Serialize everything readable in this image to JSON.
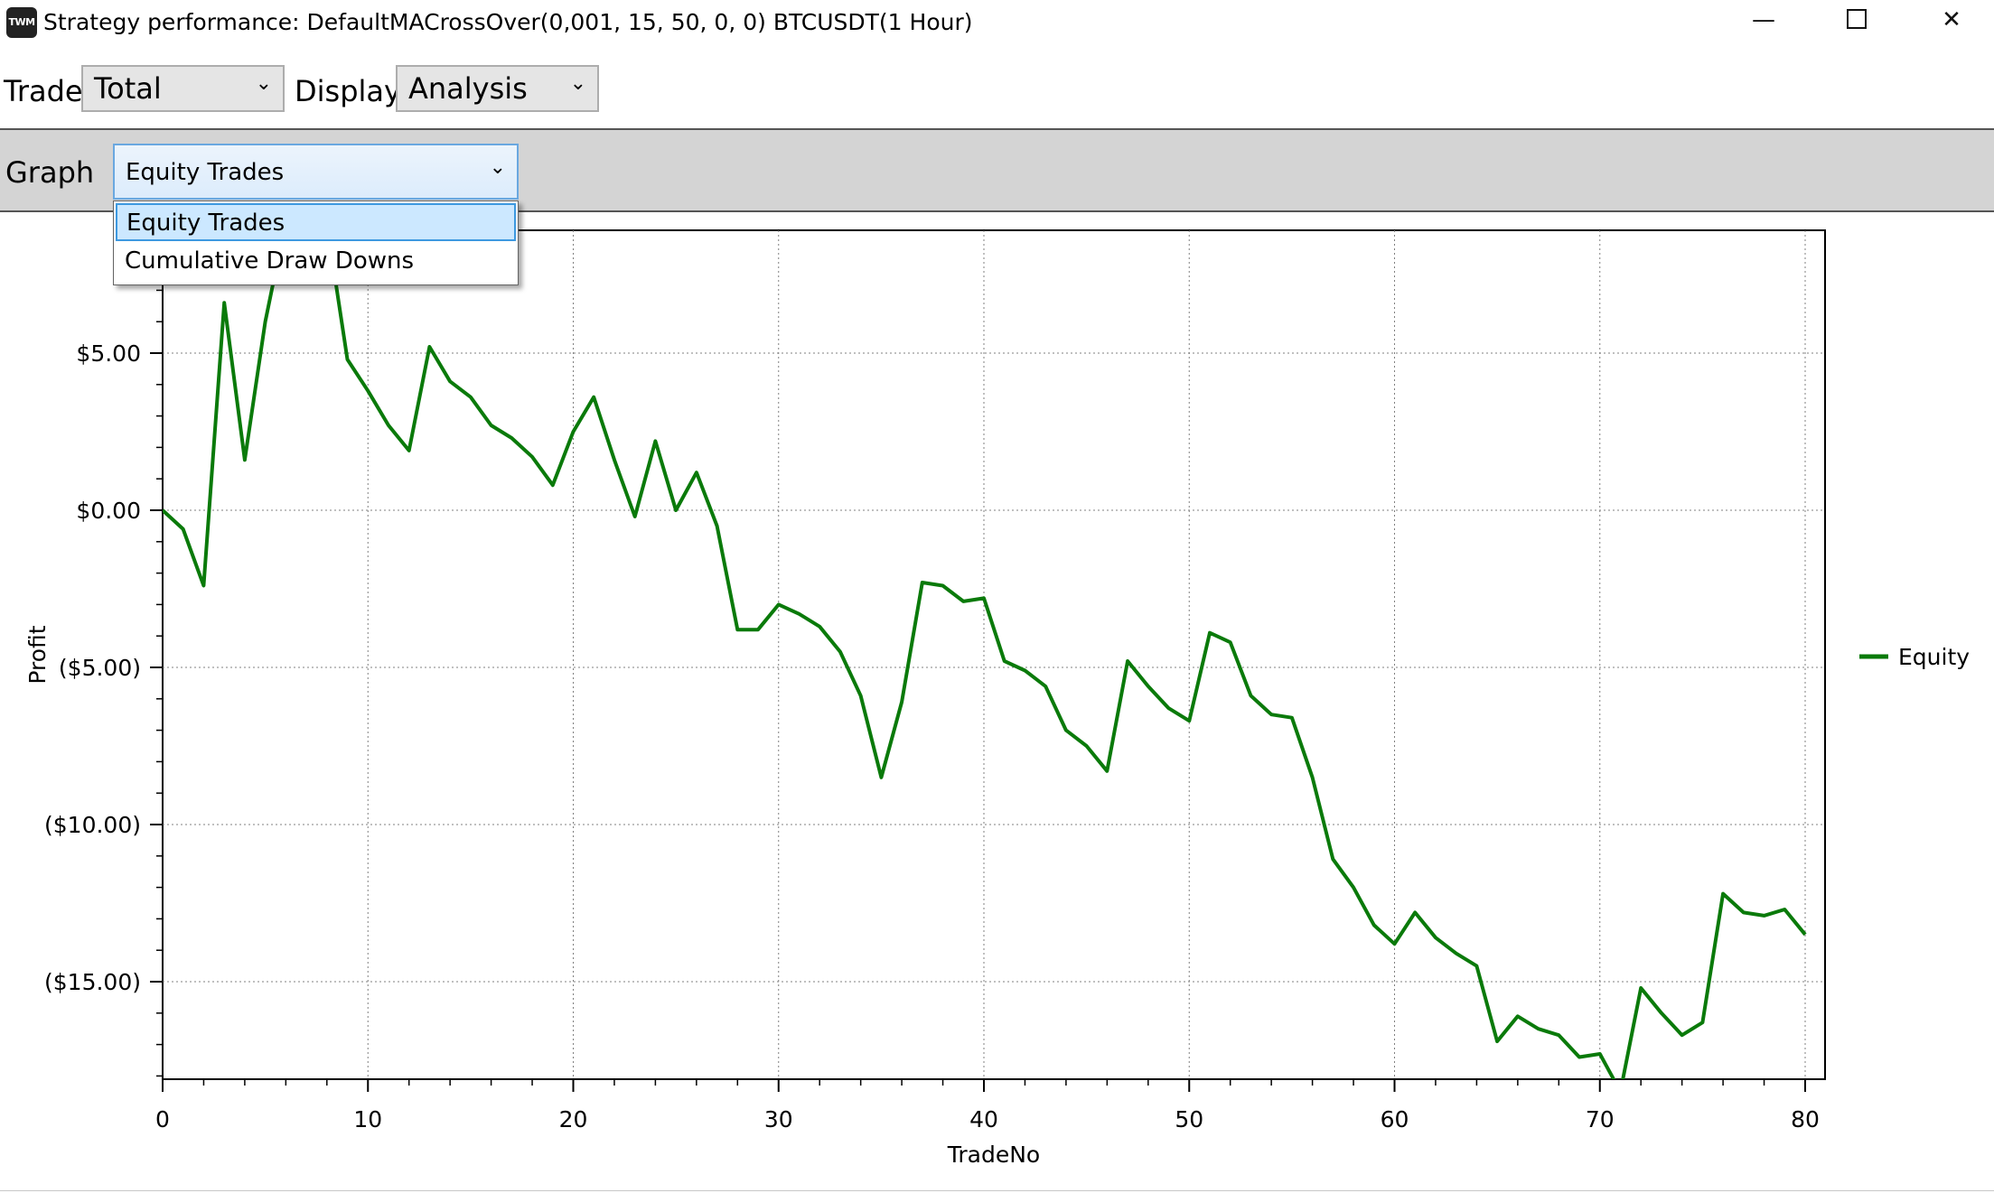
{
  "window": {
    "title": "Strategy performance: DefaultMACrossOver(0,001, 15, 50, 0, 0) BTCUSDT(1 Hour)",
    "app_icon_text": "TWM",
    "minimize_glyph": "—",
    "close_glyph": "✕"
  },
  "toolbar": {
    "trade_label": "Trade",
    "trade_value": "Total",
    "display_label": "Display",
    "display_value": "Analysis"
  },
  "graph_panel": {
    "label": "Graph",
    "selected": "Equity Trades",
    "options": [
      "Equity Trades",
      "Cumulative Draw Downs"
    ]
  },
  "icons": {
    "dropdown": "chevron-down-icon",
    "maximize": "maximize-icon",
    "minimize": "minimize-icon",
    "close": "close-icon"
  },
  "colors": {
    "series": "#0a7a0a",
    "selection_bg": "#cce8ff",
    "selection_border": "#3d99e0",
    "panel_bg": "#d4d4d4"
  },
  "chart_data": {
    "type": "line",
    "xlabel": "TradeNo",
    "ylabel": "Profit",
    "xlim": [
      0,
      81
    ],
    "ylim": [
      -18.5,
      9
    ],
    "x_ticks": [
      0,
      10,
      20,
      30,
      40,
      50,
      60,
      70,
      80
    ],
    "x_tick_labels": [
      "0",
      "10",
      "20",
      "30",
      "40",
      "50",
      "60",
      "70",
      "80"
    ],
    "y_ticks": [
      5,
      0,
      -5,
      -10,
      -15
    ],
    "y_tick_labels": [
      "$5.00",
      "$0.00",
      "($5.00)",
      "($10.00)",
      "($15.00)"
    ],
    "grid": true,
    "legend_position": "right",
    "series": [
      {
        "name": "Equity",
        "x": [
          0,
          1,
          2,
          3,
          4,
          5,
          6,
          7,
          8,
          9,
          10,
          11,
          12,
          13,
          14,
          15,
          16,
          17,
          18,
          19,
          20,
          21,
          22,
          23,
          24,
          25,
          26,
          27,
          28,
          29,
          30,
          31,
          32,
          33,
          34,
          35,
          36,
          37,
          38,
          39,
          40,
          41,
          42,
          43,
          44,
          45,
          46,
          47,
          48,
          49,
          50,
          51,
          52,
          53,
          54,
          55,
          56,
          57,
          58,
          59,
          60,
          61,
          62,
          63,
          64,
          65,
          66,
          67,
          68,
          69,
          70,
          71,
          72,
          73,
          74,
          75,
          76,
          77,
          78,
          79,
          80
        ],
        "values": [
          0.0,
          -0.6,
          -2.4,
          6.6,
          1.6,
          6.0,
          9.2,
          9.5,
          9.1,
          4.8,
          3.8,
          2.7,
          1.9,
          5.2,
          4.1,
          3.6,
          2.7,
          2.3,
          1.7,
          0.8,
          2.5,
          3.6,
          1.6,
          -0.2,
          2.2,
          0.0,
          1.2,
          -0.5,
          -3.8,
          -3.8,
          -3.0,
          -3.3,
          -3.7,
          -4.5,
          -5.9,
          -8.5,
          -6.1,
          -2.3,
          -2.4,
          -2.9,
          -2.8,
          -4.8,
          -5.1,
          -5.6,
          -7.0,
          -7.5,
          -8.3,
          -4.8,
          -5.6,
          -6.3,
          -6.7,
          -3.9,
          -4.2,
          -5.9,
          -6.5,
          -6.6,
          -8.5,
          -11.1,
          -12.0,
          -13.2,
          -13.8,
          -12.8,
          -13.6,
          -14.1,
          -14.5,
          -16.9,
          -16.1,
          -16.5,
          -16.7,
          -17.4,
          -17.3,
          -18.5,
          -15.2,
          -16.0,
          -16.7,
          -16.3,
          -12.2,
          -12.8,
          -12.9,
          -12.7,
          -13.5
        ]
      }
    ]
  }
}
